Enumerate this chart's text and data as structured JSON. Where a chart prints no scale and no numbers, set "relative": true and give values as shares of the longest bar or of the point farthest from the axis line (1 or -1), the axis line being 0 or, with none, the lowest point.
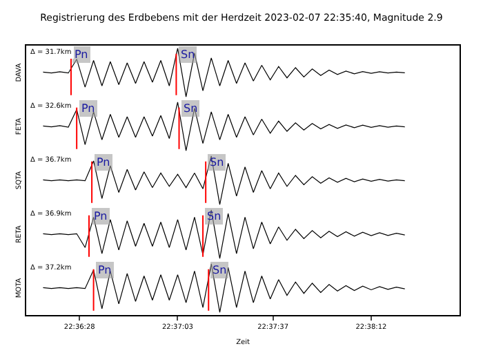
{
  "chart_data": [
    {
      "type": "line",
      "title": "Registrierung des Erdbebens mit der Herdzeit 2023-02-07 22:35:40, Magnitude 2.9",
      "ylabel": "DAVA",
      "relative": true,
      "tick_labels": false,
      "annotations": [
        "Δ = 31.7km"
      ],
      "xlim": [
        22.6025,
        22.64542
      ],
      "x": [
        22.60417,
        22.605,
        22.60583,
        22.60667,
        22.6075,
        22.60833,
        22.60917,
        22.61,
        22.61083,
        22.61167,
        22.6125,
        22.61333,
        22.61417,
        22.615,
        22.61583,
        22.61667,
        22.6175,
        22.61833,
        22.61917,
        22.62,
        22.62083,
        22.62167,
        22.6225,
        22.62333,
        22.62417,
        22.625,
        22.62583,
        22.62667,
        22.6275,
        22.62833,
        22.62917,
        22.63,
        22.63083,
        22.63167,
        22.6325,
        22.63333,
        22.63417,
        22.635,
        22.63583,
        22.63667,
        22.6375,
        22.63833,
        22.63917,
        22.64
      ],
      "series": [
        {
          "color": "#000000",
          "values": [
            0.51,
            0.49,
            0.515,
            0.49,
            0.775,
            0.2,
            0.75,
            0.225,
            0.725,
            0.25,
            0.7,
            0.275,
            0.725,
            0.3,
            0.75,
            0.225,
            1,
            0,
            0.9,
            0.125,
            0.8,
            0.225,
            0.75,
            0.275,
            0.7,
            0.325,
            0.65,
            0.35,
            0.625,
            0.39,
            0.6,
            0.41,
            0.575,
            0.44,
            0.55,
            0.46,
            0.53,
            0.475,
            0.52,
            0.485,
            0.515,
            0.49,
            0.51,
            0.495
          ]
        }
      ],
      "ref_lines": [
        {
          "axis": "x",
          "value": 22.60694,
          "label": "Pn",
          "color": "#ff0000"
        },
        {
          "axis": "x",
          "value": 22.61736,
          "label": "Sn",
          "color": "#ff0000"
        }
      ]
    },
    {
      "type": "line",
      "ylabel": "FETA",
      "relative": true,
      "tick_labels": false,
      "annotations": [
        "Δ = 32.6km"
      ],
      "xlim": [
        22.6025,
        22.64542
      ],
      "x": [
        22.60417,
        22.605,
        22.60583,
        22.60667,
        22.6075,
        22.60833,
        22.60917,
        22.61,
        22.61083,
        22.61167,
        22.6125,
        22.61333,
        22.61417,
        22.615,
        22.61583,
        22.61667,
        22.6175,
        22.61833,
        22.61917,
        22.62,
        22.62083,
        22.62167,
        22.6225,
        22.62333,
        22.62417,
        22.625,
        22.62583,
        22.62667,
        22.6275,
        22.62833,
        22.62917,
        22.63,
        22.63083,
        22.63167,
        22.6325,
        22.63333,
        22.63417,
        22.635,
        22.63583,
        22.63667,
        22.6375,
        22.63833,
        22.63917,
        22.64
      ],
      "series": [
        {
          "color": "#000000",
          "values": [
            0.51,
            0.49,
            0.515,
            0.485,
            0.85,
            0.125,
            0.8,
            0.225,
            0.75,
            0.275,
            0.7,
            0.275,
            0.7,
            0.3,
            0.725,
            0.25,
            1,
            0,
            0.875,
            0.15,
            0.8,
            0.225,
            0.75,
            0.275,
            0.7,
            0.325,
            0.65,
            0.36,
            0.61,
            0.4,
            0.575,
            0.425,
            0.56,
            0.45,
            0.54,
            0.46,
            0.53,
            0.475,
            0.525,
            0.48,
            0.515,
            0.485,
            0.51,
            0.49
          ]
        }
      ],
      "ref_lines": [
        {
          "axis": "x",
          "value": 22.6075,
          "label": "Pn",
          "color": "#ff0000"
        },
        {
          "axis": "x",
          "value": 22.61764,
          "label": "Sn",
          "color": "#ff0000"
        }
      ]
    },
    {
      "type": "line",
      "ylabel": "SQTA",
      "relative": true,
      "tick_labels": false,
      "annotations": [
        "Δ = 36.7km"
      ],
      "xlim": [
        22.6025,
        22.64542
      ],
      "x": [
        22.60417,
        22.605,
        22.60583,
        22.60667,
        22.6075,
        22.60833,
        22.60917,
        22.61,
        22.61083,
        22.61167,
        22.6125,
        22.61333,
        22.61417,
        22.615,
        22.61583,
        22.61667,
        22.6175,
        22.61833,
        22.61917,
        22.62,
        22.62083,
        22.62167,
        22.6225,
        22.62333,
        22.62417,
        22.625,
        22.62583,
        22.62667,
        22.6275,
        22.62833,
        22.62917,
        22.63,
        22.63083,
        22.63167,
        22.6325,
        22.63333,
        22.63417,
        22.635,
        22.63583,
        22.63667,
        22.6375,
        22.63833,
        22.63917,
        22.64
      ],
      "series": [
        {
          "color": "#000000",
          "values": [
            0.51,
            0.49,
            0.51,
            0.49,
            0.51,
            0.49,
            0.9,
            0.125,
            0.8,
            0.25,
            0.725,
            0.3,
            0.675,
            0.35,
            0.65,
            0.375,
            0.625,
            0.35,
            0.65,
            0.325,
            1,
            0,
            0.85,
            0.175,
            0.775,
            0.25,
            0.7,
            0.325,
            0.65,
            0.375,
            0.6,
            0.41,
            0.575,
            0.44,
            0.55,
            0.46,
            0.54,
            0.47,
            0.525,
            0.48,
            0.52,
            0.485,
            0.51,
            0.49
          ]
        }
      ],
      "ref_lines": [
        {
          "axis": "x",
          "value": 22.609,
          "label": "Pn",
          "color": "#ff0000"
        },
        {
          "axis": "x",
          "value": 22.62028,
          "label": "Sn",
          "color": "#ff0000"
        }
      ]
    },
    {
      "type": "line",
      "ylabel": "RETA",
      "relative": true,
      "tick_labels": false,
      "annotations": [
        "Δ = 36.9km"
      ],
      "xlim": [
        22.6025,
        22.64542
      ],
      "x": [
        22.60417,
        22.605,
        22.60583,
        22.60667,
        22.6075,
        22.60833,
        22.60917,
        22.61,
        22.61083,
        22.61167,
        22.6125,
        22.61333,
        22.61417,
        22.615,
        22.61583,
        22.61667,
        22.6175,
        22.61833,
        22.61917,
        22.62,
        22.62083,
        22.62167,
        22.6225,
        22.62333,
        22.62417,
        22.625,
        22.62583,
        22.62667,
        22.6275,
        22.62833,
        22.62917,
        22.63,
        22.63083,
        22.63167,
        22.6325,
        22.63333,
        22.63417,
        22.635,
        22.63583,
        22.63667,
        22.6375,
        22.63833,
        22.63917,
        22.64
      ],
      "series": [
        {
          "color": "#000000",
          "values": [
            0.51,
            0.49,
            0.51,
            0.49,
            0.51,
            0.225,
            0.85,
            0.1,
            0.8,
            0.175,
            0.775,
            0.25,
            0.725,
            0.25,
            0.75,
            0.225,
            0.8,
            0.175,
            0.85,
            0.075,
            1,
            0,
            0.925,
            0.1,
            0.85,
            0.2,
            0.75,
            0.3,
            0.65,
            0.375,
            0.6,
            0.41,
            0.575,
            0.425,
            0.56,
            0.45,
            0.55,
            0.46,
            0.54,
            0.47,
            0.53,
            0.475,
            0.52,
            0.485
          ]
        }
      ],
      "ref_lines": [
        {
          "axis": "x",
          "value": 22.60872,
          "label": "Pn",
          "color": "#ff0000"
        },
        {
          "axis": "x",
          "value": 22.62,
          "label": "Sn",
          "color": "#ff0000"
        }
      ]
    },
    {
      "type": "line",
      "ylabel": "MOTA",
      "xlabel": "Zeit",
      "relative": true,
      "tick_labels": "x",
      "annotations": [
        "Δ = 37.2km"
      ],
      "xlim": [
        22.6025,
        22.64542
      ],
      "xticks": [
        {
          "value": 22.60778,
          "label": "22:36:28"
        },
        {
          "value": 22.6175,
          "label": "22:37:03"
        },
        {
          "value": 22.62694,
          "label": "22:37:37"
        },
        {
          "value": 22.63667,
          "label": "22:38:12"
        }
      ],
      "x": [
        22.60417,
        22.605,
        22.60583,
        22.60667,
        22.6075,
        22.60833,
        22.60917,
        22.61,
        22.61083,
        22.61167,
        22.6125,
        22.61333,
        22.61417,
        22.615,
        22.61583,
        22.61667,
        22.6175,
        22.61833,
        22.61917,
        22.62,
        22.62083,
        22.62167,
        22.6225,
        22.62333,
        22.62417,
        22.625,
        22.62583,
        22.62667,
        22.6275,
        22.62833,
        22.62917,
        22.63,
        22.63083,
        22.63167,
        22.6325,
        22.63333,
        22.63417,
        22.635,
        22.63583,
        22.63667,
        22.6375,
        22.63833,
        22.63917,
        22.64
      ],
      "series": [
        {
          "color": "#000000",
          "values": [
            0.51,
            0.49,
            0.51,
            0.49,
            0.51,
            0.49,
            0.875,
            0.075,
            0.85,
            0.175,
            0.8,
            0.225,
            0.75,
            0.25,
            0.775,
            0.25,
            0.775,
            0.2,
            0.85,
            0.1,
            1,
            0,
            0.925,
            0.1,
            0.85,
            0.2,
            0.75,
            0.275,
            0.675,
            0.35,
            0.625,
            0.39,
            0.6,
            0.41,
            0.575,
            0.44,
            0.55,
            0.45,
            0.54,
            0.465,
            0.53,
            0.475,
            0.52,
            0.485
          ]
        }
      ],
      "ref_lines": [
        {
          "axis": "x",
          "value": 22.60917,
          "label": "Pn",
          "color": "#ff0000"
        },
        {
          "axis": "x",
          "value": 22.62056,
          "label": "Sn",
          "color": "#ff0000"
        }
      ]
    }
  ]
}
